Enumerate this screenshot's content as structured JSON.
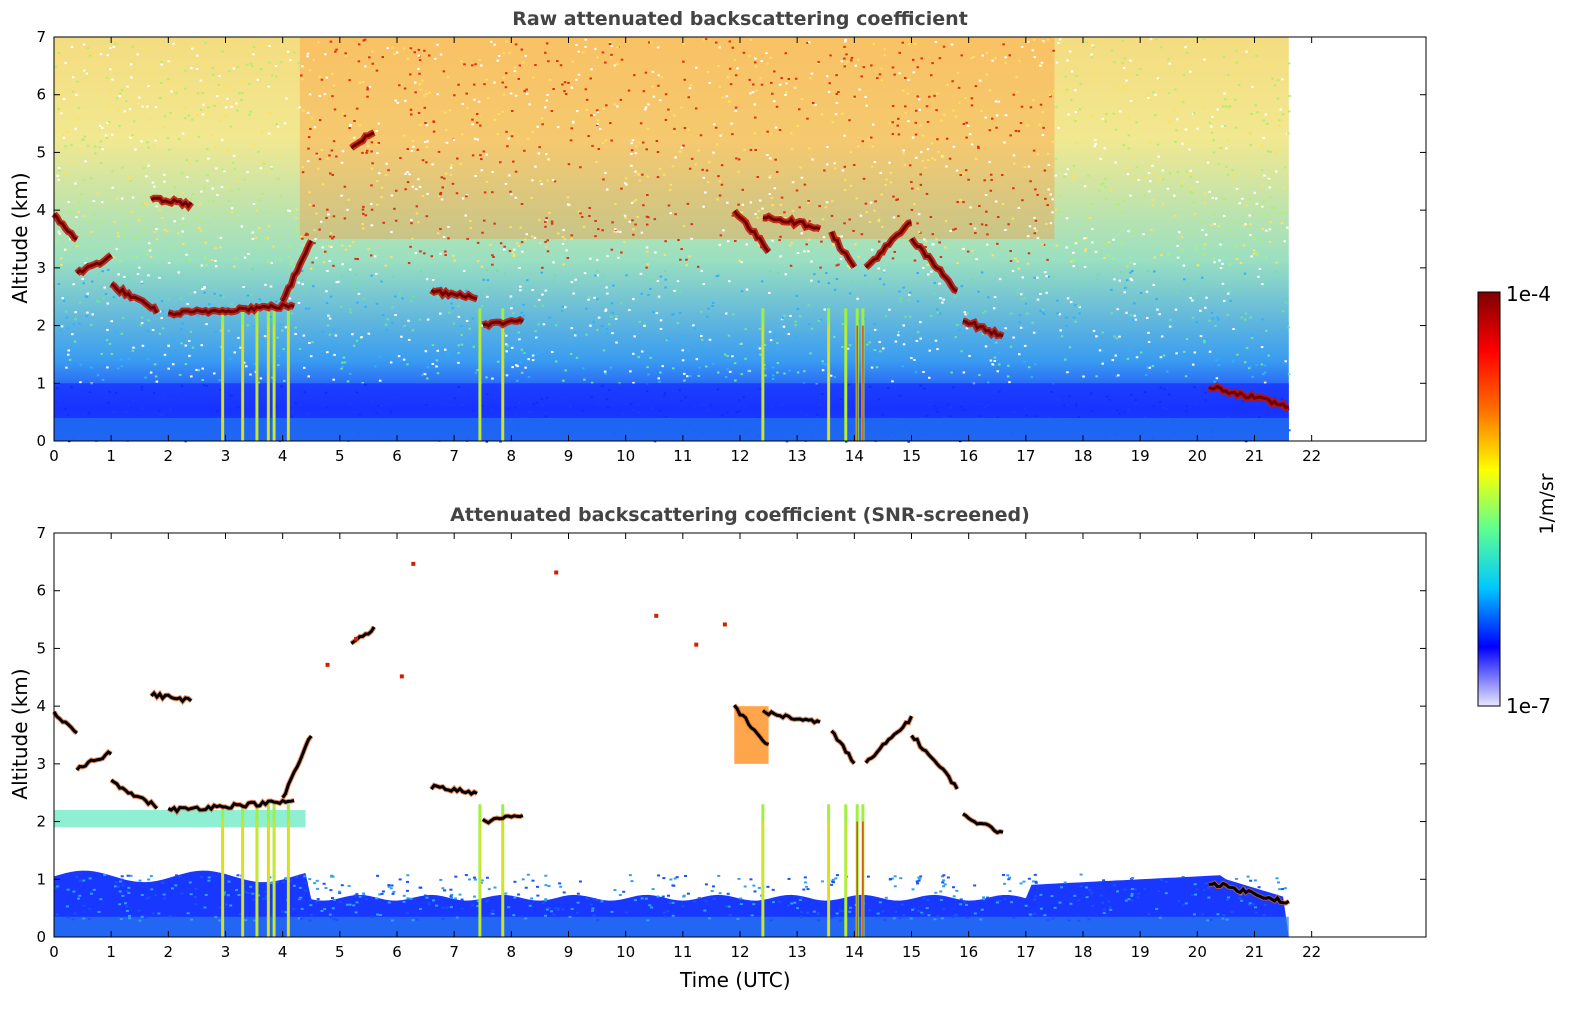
{
  "chart_data": [
    {
      "type": "heatmap",
      "title": "Raw attenuated backscattering coefficient",
      "ylabel": "Altitude (km)",
      "xlabel": "",
      "x_ticks": [
        "0",
        "1",
        "2",
        "3",
        "4",
        "5",
        "6",
        "7",
        "8",
        "9",
        "10",
        "11",
        "12",
        "13",
        "14",
        "15",
        "16",
        "17",
        "18",
        "19",
        "20",
        "21",
        "22"
      ],
      "y_ticks": [
        "0",
        "1",
        "2",
        "3",
        "4",
        "5",
        "6",
        "7"
      ],
      "xlim": [
        0,
        24
      ],
      "ylim": [
        0,
        7
      ],
      "data_end_time": 21.6,
      "cloud_layers": [
        {
          "t0": 0.0,
          "t1": 0.4,
          "alt0": 3.9,
          "alt1": 3.5
        },
        {
          "t0": 0.4,
          "t1": 1.0,
          "alt0": 2.9,
          "alt1": 3.2
        },
        {
          "t0": 1.0,
          "t1": 1.8,
          "alt0": 2.7,
          "alt1": 2.25
        },
        {
          "t0": 1.7,
          "t1": 2.4,
          "alt0": 4.2,
          "alt1": 4.1
        },
        {
          "t0": 2.0,
          "t1": 4.2,
          "alt0": 2.2,
          "alt1": 2.35
        },
        {
          "t0": 4.0,
          "t1": 4.5,
          "alt0": 2.4,
          "alt1": 3.5
        },
        {
          "t0": 5.2,
          "t1": 5.6,
          "alt0": 5.1,
          "alt1": 5.35
        },
        {
          "t0": 6.6,
          "t1": 7.4,
          "alt0": 2.6,
          "alt1": 2.5
        },
        {
          "t0": 7.5,
          "t1": 8.2,
          "alt0": 2.0,
          "alt1": 2.1
        },
        {
          "t0": 11.9,
          "t1": 12.5,
          "alt0": 4.0,
          "alt1": 3.3
        },
        {
          "t0": 12.4,
          "t1": 13.4,
          "alt0": 3.9,
          "alt1": 3.7
        },
        {
          "t0": 13.6,
          "t1": 14.0,
          "alt0": 3.6,
          "alt1": 3.0
        },
        {
          "t0": 14.2,
          "t1": 15.0,
          "alt0": 3.0,
          "alt1": 3.8
        },
        {
          "t0": 15.0,
          "t1": 15.8,
          "alt0": 3.5,
          "alt1": 2.6
        },
        {
          "t0": 15.9,
          "t1": 16.6,
          "alt0": 2.1,
          "alt1": 1.8
        },
        {
          "t0": 20.2,
          "t1": 21.6,
          "alt0": 0.95,
          "alt1": 0.6
        }
      ],
      "vertical_streaks": [
        2.95,
        3.3,
        3.55,
        3.75,
        3.85,
        4.1,
        7.45,
        7.85,
        12.4,
        13.55,
        13.85,
        14.05,
        14.15
      ]
    },
    {
      "type": "heatmap",
      "title": "Attenuated backscattering coefficient (SNR-screened)",
      "ylabel": "Altitude (km)",
      "xlabel": "Time (UTC)",
      "x_ticks": [
        "0",
        "1",
        "2",
        "3",
        "4",
        "5",
        "6",
        "7",
        "8",
        "9",
        "10",
        "11",
        "12",
        "13",
        "14",
        "15",
        "16",
        "17",
        "18",
        "19",
        "20",
        "21",
        "22"
      ],
      "y_ticks": [
        "0",
        "1",
        "2",
        "3",
        "4",
        "5",
        "6",
        "7"
      ],
      "xlim": [
        0,
        24
      ],
      "ylim": [
        0,
        7
      ],
      "data_end_time": 21.6
    }
  ],
  "colorbar": {
    "label": "1/m/sr",
    "max_label": "1e-4",
    "min_label": "1e-7",
    "scale": "log",
    "colors": [
      "#e8e8ff",
      "#0000ff",
      "#00c8ff",
      "#60ff90",
      "#ffff00",
      "#ff7000",
      "#ff0000",
      "#800000"
    ]
  }
}
